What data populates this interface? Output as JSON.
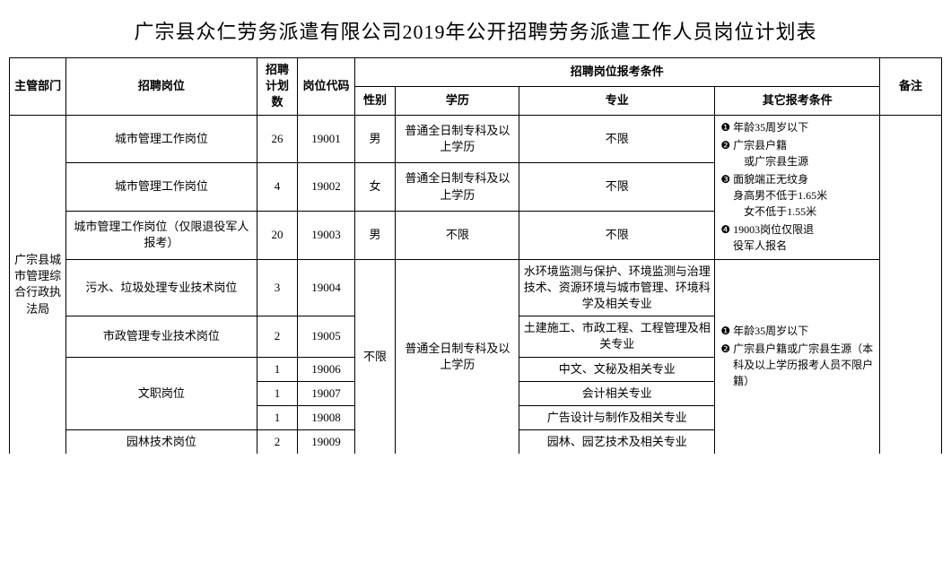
{
  "title": "广宗县众仁劳务派遣有限公司2019年公开招聘劳务派遣工作人员岗位计划表",
  "headers": {
    "dept": "主管部门",
    "position": "招聘岗位",
    "plan": "招聘计划数",
    "code": "岗位代码",
    "cond_group": "招聘岗位报考条件",
    "sex": "性别",
    "edu": "学历",
    "major": "专业",
    "other": "其它报考条件",
    "note": "备注"
  },
  "dept": "广宗县城市管理综合行政执法局",
  "edu_common": "普通全日制专科及以上学历",
  "rows": [
    {
      "position": "城市管理工作岗位",
      "plan": "26",
      "code": "19001",
      "sex": "男",
      "edu": "普通全日制专科及以上学历",
      "major": "不限"
    },
    {
      "position": "城市管理工作岗位",
      "plan": "4",
      "code": "19002",
      "sex": "女",
      "edu": "普通全日制专科及以上学历",
      "major": "不限"
    },
    {
      "position": "城市管理工作岗位（仅限退役军人报考）",
      "plan": "20",
      "code": "19003",
      "sex": "男",
      "edu": "不限",
      "major": "不限"
    },
    {
      "position": "污水、垃圾处理专业技术岗位",
      "plan": "3",
      "code": "19004",
      "sex": "不限",
      "edu": "普通全日制专科及以上学历",
      "major": "水环境监测与保护、环境监测与治理技术、资源环境与城市管理、环境科学及相关专业"
    },
    {
      "position": "市政管理专业技术岗位",
      "plan": "2",
      "code": "19005",
      "sex": "",
      "edu": "",
      "major": "土建施工、市政工程、工程管理及相关专业"
    },
    {
      "position": "",
      "plan": "1",
      "code": "19006",
      "sex": "",
      "edu": "",
      "major": "中文、文秘及相关专业"
    },
    {
      "position": "文职岗位",
      "plan": "1",
      "code": "19007",
      "sex": "",
      "edu": "",
      "major": "会计相关专业"
    },
    {
      "position": "",
      "plan": "1",
      "code": "19008",
      "sex": "",
      "edu": "",
      "major": "广告设计与制作及相关专业"
    },
    {
      "position": "园林技术岗位",
      "plan": "2",
      "code": "19009",
      "sex": "",
      "edu": "",
      "major": "园林、园艺技术及相关专业"
    }
  ],
  "other1": {
    "i1": "年龄35周岁以下",
    "i2a": "广宗县户籍",
    "i2b": "或广宗县生源",
    "i3a": "面貌端正无纹身",
    "i3b": "身高男不低于1.65米",
    "i3c": "女不低于1.55米",
    "i4a": "19003岗位仅限退",
    "i4b": "役军人报名"
  },
  "other2": {
    "i1": "年龄35周岁以下",
    "i2": "广宗县户籍或广宗县生源（本科及以上学历报考人员不限户籍）"
  },
  "sex_unlimited": "不限",
  "position_clerical": "文职岗位"
}
